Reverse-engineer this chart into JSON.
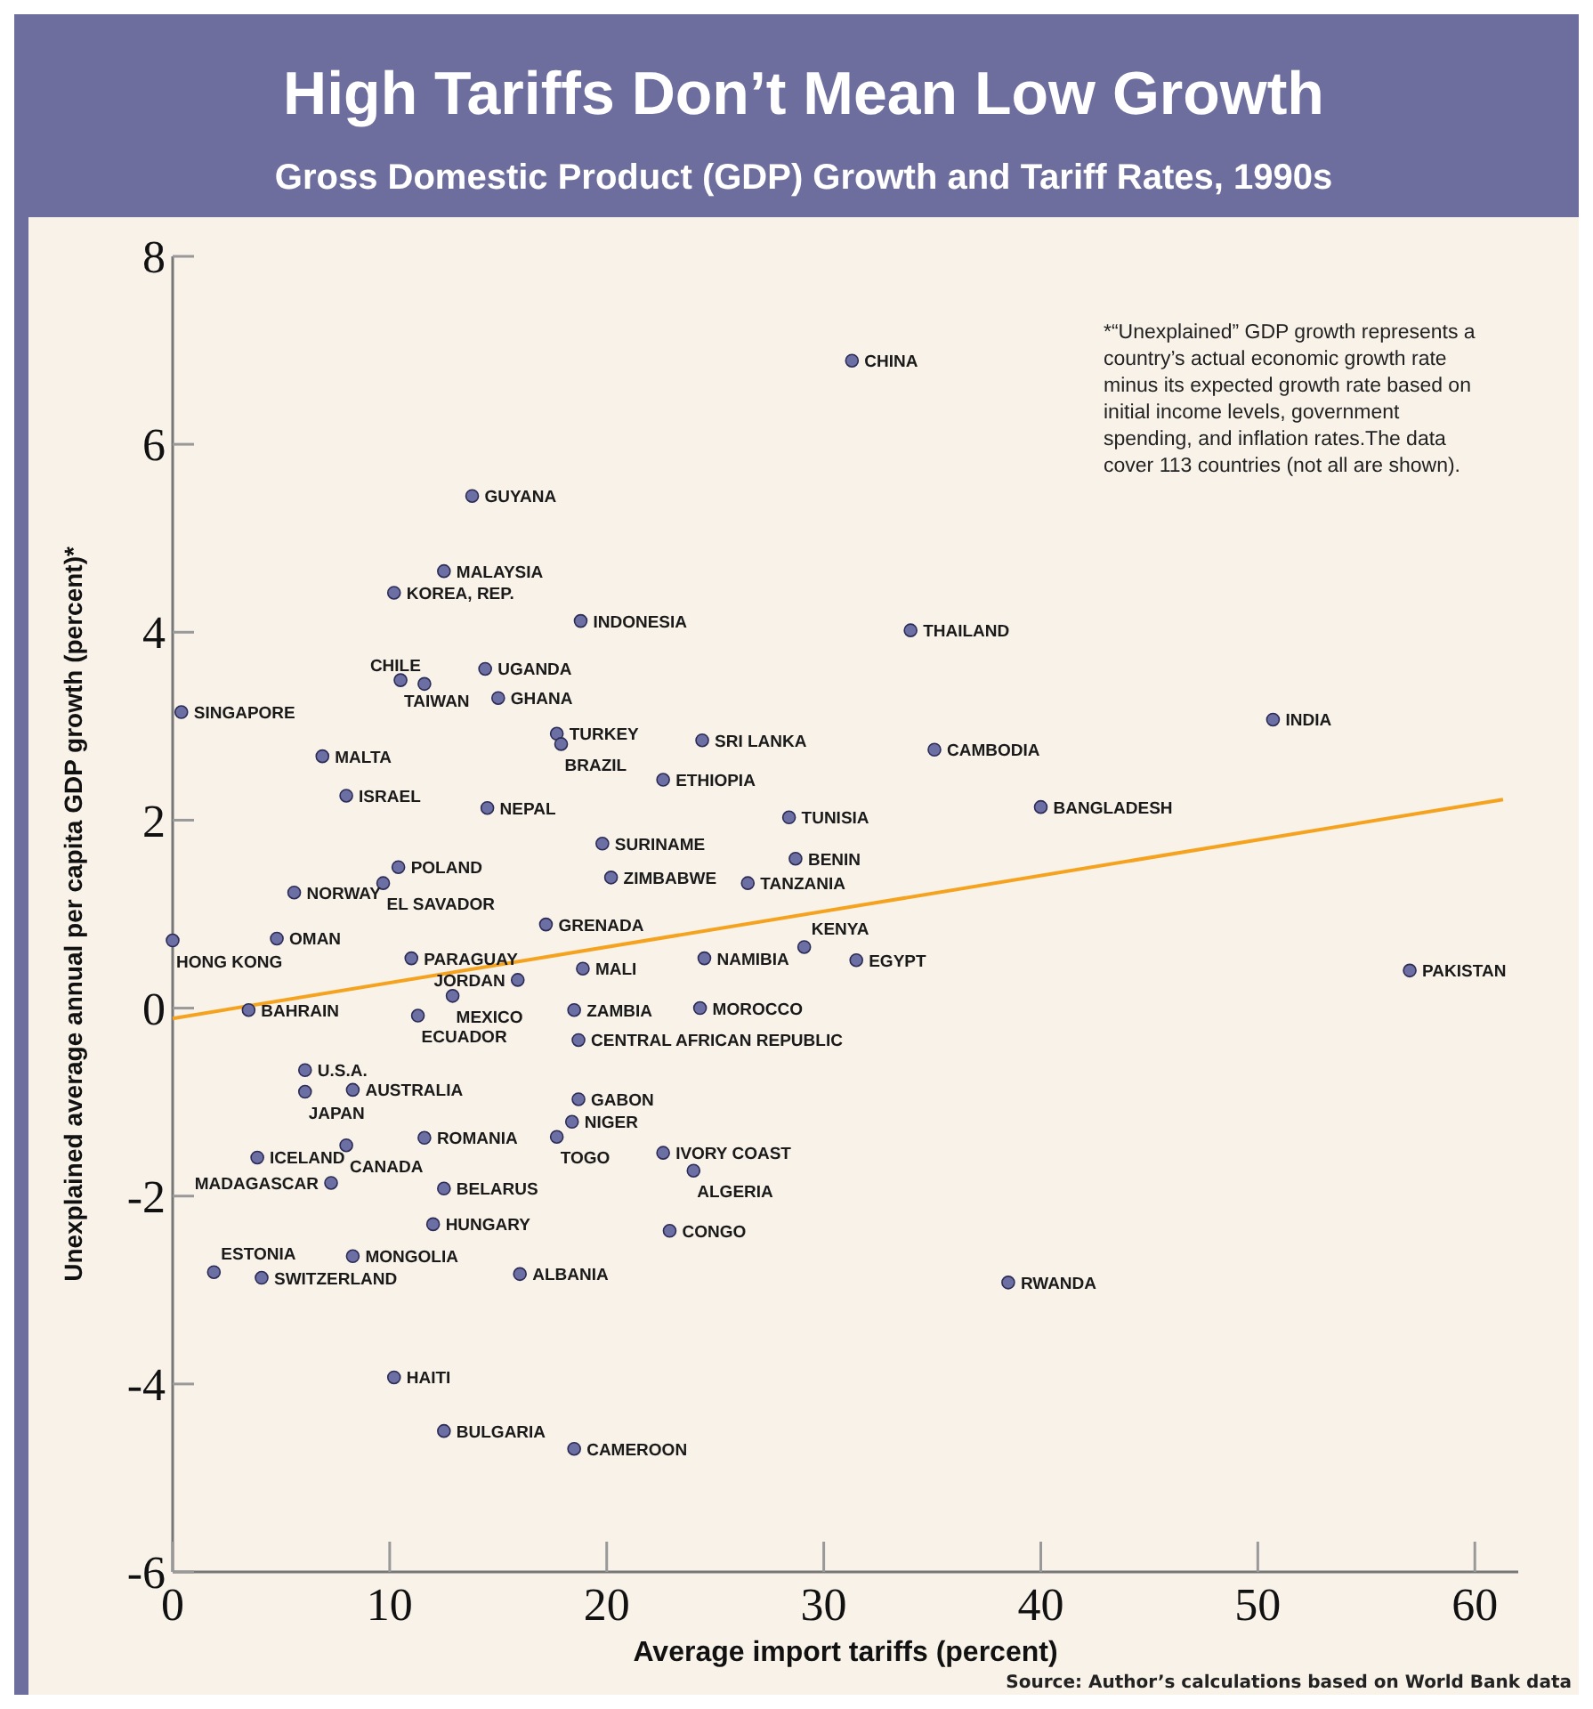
{
  "chart_data": {
    "type": "scatter",
    "title": "High Tariffs Don’t Mean Low Growth",
    "subtitle": "Gross Domestic Product (GDP) Growth and Tariff Rates, 1990s",
    "xlabel": "Average import tariffs (percent)",
    "ylabel": "Unexplained average annual per capita GDP growth (percent)*",
    "xlim": [
      0,
      62
    ],
    "xticks": [
      0,
      10,
      20,
      30,
      40,
      50,
      60
    ],
    "ylim": [
      -6,
      8
    ],
    "yticks": [
      -6,
      -4,
      -2,
      0,
      2,
      4,
      6,
      8
    ],
    "grid": false,
    "annotations": [
      "*“Unexplained” GDP growth represents a country’s actual economic growth rate minus its expected growth rate based on initial income levels, government spending, and inflation rates.The data cover 113 countries (not all are shown).",
      "Source: Author’s calculations based on World Bank data"
    ],
    "series": [
      {
        "type": "line",
        "color": "#f5a31e",
        "x": [
          0,
          61.3
        ],
        "values": [
          -0.11,
          2.22
        ]
      },
      {
        "color": "#6b6fa3",
        "marker": "circle",
        "x": [
          31.3,
          13.8,
          12.5,
          10.2,
          18.8,
          34.0,
          10.5,
          11.6,
          14.4,
          15.0,
          0.4,
          17.7,
          17.9,
          6.9,
          24.4,
          35.1,
          50.7,
          22.6,
          8.0,
          14.5,
          28.4,
          40.0,
          19.8,
          20.2,
          28.7,
          26.5,
          10.4,
          9.7,
          5.6,
          17.2,
          4.8,
          0.0,
          11.0,
          15.9,
          18.9,
          29.1,
          24.5,
          31.5,
          57.0,
          12.9,
          3.5,
          18.5,
          24.3,
          11.3,
          18.7,
          6.1,
          6.1,
          8.3,
          18.7,
          18.4,
          17.7,
          11.6,
          8.0,
          22.6,
          3.9,
          24.0,
          7.3,
          12.5,
          12.0,
          22.9,
          1.9,
          4.1,
          8.3,
          16.0,
          38.5,
          10.2,
          12.5,
          18.5
        ],
        "values": [
          6.89,
          5.45,
          4.65,
          4.42,
          4.12,
          4.02,
          3.49,
          3.45,
          3.61,
          3.3,
          3.15,
          2.92,
          2.81,
          2.68,
          2.85,
          2.75,
          3.07,
          2.43,
          2.26,
          2.13,
          2.03,
          2.14,
          1.75,
          1.39,
          1.59,
          1.33,
          1.5,
          1.33,
          1.23,
          0.89,
          0.74,
          0.72,
          0.53,
          0.3,
          0.42,
          0.65,
          0.53,
          0.51,
          0.4,
          0.13,
          -0.02,
          -0.02,
          0.0,
          -0.08,
          -0.34,
          -0.66,
          -0.89,
          -0.87,
          -0.97,
          -1.21,
          -1.37,
          -1.38,
          -1.46,
          -1.54,
          -1.59,
          -1.73,
          -1.86,
          -1.92,
          -2.3,
          -2.37,
          -2.81,
          -2.87,
          -2.64,
          -2.83,
          -2.92,
          -3.93,
          -4.5,
          -4.69
        ],
        "value_labels": [
          "CHINA",
          "GUYANA",
          "MALAYSIA",
          "KOREA, REP.",
          "INDONESIA",
          "THAILAND",
          "TAIWAN",
          "CHILE",
          "UGANDA",
          "GHANA",
          "SINGAPORE",
          "TURKEY",
          "BRAZIL",
          "MALTA",
          "SRI LANKA",
          "CAMBODIA",
          "INDIA",
          "ETHIOPIA",
          "ISRAEL",
          "NEPAL",
          "TUNISIA",
          "BANGLADESH",
          "SURINAME",
          "ZIMBABWE",
          "BENIN",
          "TANZANIA",
          "POLAND",
          "EL SAVADOR",
          "NORWAY",
          "GRENADA",
          "OMAN",
          "HONG KONG",
          "PARAGUAY",
          "JORDAN",
          "MALI",
          "KENYA",
          "NAMIBIA",
          "EGYPT",
          "PAKISTAN",
          "MEXICO",
          "BAHRAIN",
          "ZAMBIA",
          "MOROCCO",
          "ECUADOR",
          "CENTRAL AFRICAN REPUBLIC",
          "U.S.A.",
          "JAPAN",
          "AUSTRALIA",
          "GABON",
          "NIGER",
          "TOGO",
          "ROMANIA",
          "CANADA",
          "IVORY COAST",
          "ICELAND",
          "ALGERIA",
          "MADAGASCAR",
          "BELARUS",
          "HUNGARY",
          "CONGO",
          "ESTONIA",
          "SWITZERLAND",
          "MONGOLIA",
          "ALBANIA",
          "RWANDA",
          "HAITI",
          "BULGARIA",
          "CAMEROON"
        ]
      }
    ]
  }
}
